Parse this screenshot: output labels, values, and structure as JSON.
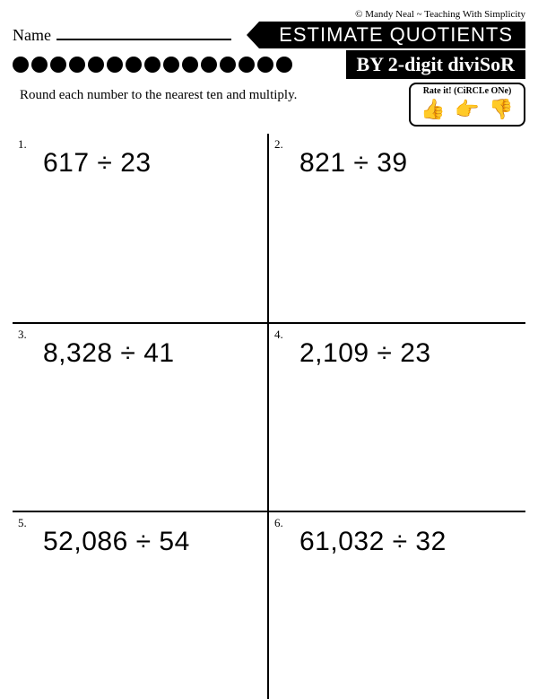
{
  "copyright": "© Mandy Neal ~ Teaching With Simplicity",
  "name_label": "Name",
  "title": "ESTIMATE QUOTIENTS",
  "subtitle": "BY 2-digit diviSoR",
  "instructions": "Round each number to the nearest ten and multiply.",
  "rate_label": "Rate it! (CiRCLe ONe)",
  "rate_icons": [
    "👍",
    "👉",
    "👎"
  ],
  "dot_count": 15,
  "problems": [
    {
      "num": "1.",
      "expr": "617 ÷ 23"
    },
    {
      "num": "2.",
      "expr": "821 ÷ 39"
    },
    {
      "num": "3.",
      "expr": "8,328 ÷ 41"
    },
    {
      "num": "4.",
      "expr": "2,109 ÷ 23"
    },
    {
      "num": "5.",
      "expr": "52,086 ÷ 54"
    },
    {
      "num": "6.",
      "expr": "61,032 ÷ 32"
    }
  ]
}
